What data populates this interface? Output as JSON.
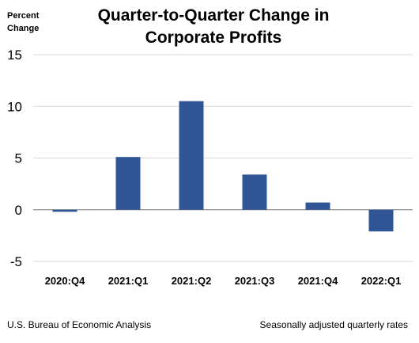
{
  "chart_data": {
    "type": "bar",
    "title": "Quarter-to-Quarter Change in\nCorporate Profits",
    "ylabel": "Percent\nChange",
    "xlabel": "",
    "categories": [
      "2020:Q4",
      "2021:Q1",
      "2021:Q2",
      "2021:Q3",
      "2021:Q4",
      "2022:Q1"
    ],
    "values": [
      -0.2,
      5.1,
      10.5,
      3.4,
      0.7,
      -2.1
    ],
    "ylim": [
      -5,
      15
    ],
    "yticks": [
      15,
      10,
      5,
      0,
      -5
    ],
    "grid": true,
    "bar_color": "#2F5597",
    "grid_color": "#d9d9d9"
  },
  "footer": {
    "source": "U.S. Bureau of Economic Analysis",
    "note": "Seasonally adjusted quarterly rates"
  }
}
